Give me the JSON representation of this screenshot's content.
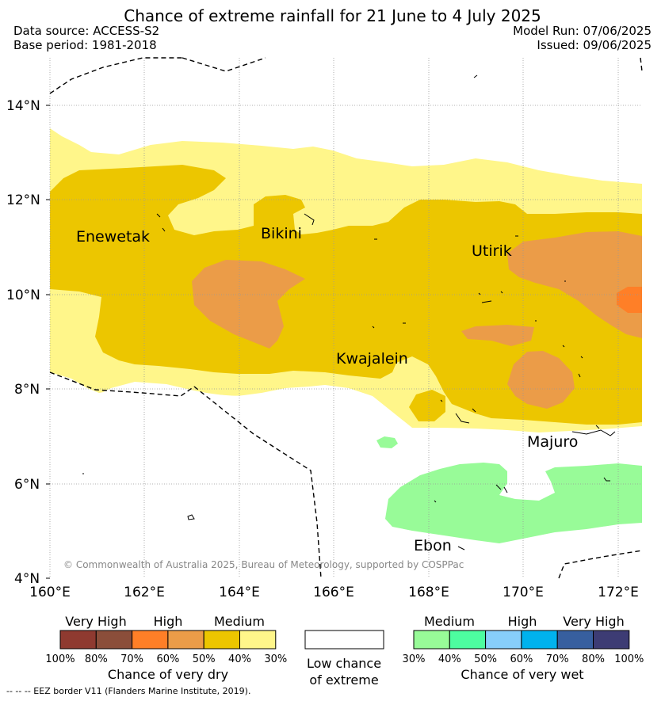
{
  "header": {
    "title": "Chance of extreme rainfall for 21 June to 4 July 2025",
    "data_source": "Data source: ACCESS-S2",
    "base_period": "Base period: 1981-2018",
    "model_run": "Model Run: 07/06/2025",
    "issued": "Issued: 09/06/2025"
  },
  "map": {
    "lat_labels": [
      "14°N",
      "12°N",
      "10°N",
      "8°N",
      "6°N",
      "4°N"
    ],
    "lon_labels": [
      "160°E",
      "162°E",
      "164°E",
      "166°E",
      "168°E",
      "170°E",
      "172°E"
    ],
    "places": [
      "Enewetak",
      "Bikini",
      "Utirik",
      "Kwajalein",
      "Majuro",
      "Ebon"
    ],
    "copyright": "© Commonwealth of Australia 2025, Bureau of Meteorology, supported by COSPPac",
    "colors": {
      "dry_30_40": "#fff68a",
      "dry_40_50": "#ecc600",
      "dry_50_60": "#eb9c48",
      "dry_60_70": "#ff7f27",
      "wet_30_40": "#98fb98"
    }
  },
  "legend": {
    "dry": {
      "levels": [
        "Very High",
        "High",
        "Medium"
      ],
      "ticks": [
        "100%",
        "80%",
        "70%",
        "60%",
        "50%",
        "40%",
        "30%"
      ],
      "colors": [
        "#8f3a30",
        "#8b4e3a",
        "#ff7f27",
        "#eb9c48",
        "#ecc600",
        "#fff68a"
      ],
      "label": "Chance of very dry"
    },
    "neutral": {
      "label_line1": "Low chance",
      "label_line2": "of extreme"
    },
    "wet": {
      "levels": [
        "Medium",
        "High",
        "Very High"
      ],
      "ticks": [
        "30%",
        "40%",
        "50%",
        "60%",
        "70%",
        "80%",
        "100%"
      ],
      "colors": [
        "#98fb98",
        "#4dfda0",
        "#87cefa",
        "#00b2ee",
        "#375f9f",
        "#3d3c74"
      ],
      "label": "Chance of very wet"
    }
  },
  "footer": {
    "eez_note": "--  --  -- EEZ border V11 (Flanders Marine Institute, 2019)."
  }
}
